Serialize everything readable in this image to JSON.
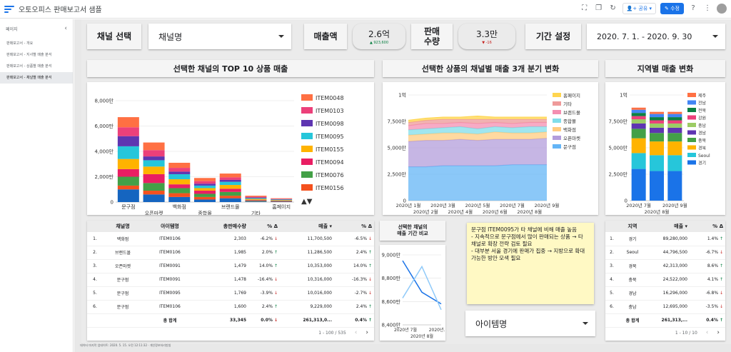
{
  "app": {
    "title": "오토오피스 판매보고서 샘플",
    "share_label": "공유",
    "edit_label": "수정",
    "footer": "데이터 마지막 업데이트: 2020. 5. 15. 오전 12:11:32 · 개인정보처리방침"
  },
  "sidebar": {
    "header": "페이지",
    "items": [
      {
        "label": "판매보고서 - 개요"
      },
      {
        "label": "판매보고서 - 지사별 매출 분석"
      },
      {
        "label": "판매보고서 - 상품별 매출 분석"
      },
      {
        "label": "판매보고서 - 채널별 매출 분석"
      }
    ]
  },
  "controls": {
    "channel_label": "채널 선택",
    "channel_value": "채널명",
    "sales_label": "매출액",
    "sales_value": "2.6억",
    "sales_delta": "▲ 923,600",
    "qty_label": "판매\n수량",
    "qty_value": "3.3만",
    "qty_delta": "▼ -16",
    "period_label": "기간 설정",
    "period_value": "2020. 7. 1. - 2020. 9. 30"
  },
  "sections": {
    "top10": "선택한 채널의 TOP 10 상품 매출",
    "quarter": "선택한 상품의 채널별 매출 3개 분기 변화",
    "region": "지역별 매출 변화",
    "period_compare": "선택한 채널의\n매출 기간 비교"
  },
  "chart_data": [
    {
      "type": "bar",
      "stacked": true,
      "yticks": [
        "0",
        "2,000만",
        "4,000만",
        "6,000만",
        "8,000만"
      ],
      "ylim": [
        0,
        80000000
      ],
      "categories": [
        "문구점",
        "오픈마켓",
        "백화점",
        "종합몰",
        "브랜드몰",
        "기타",
        "홈페이지"
      ],
      "legend_position": "right",
      "legend_arrows": "▲▼",
      "series": [
        {
          "name": "ITEM0048",
          "color": "#ff7043",
          "values": [
            8000000,
            6000000,
            4000000,
            2500000,
            3000000,
            800000,
            400000
          ]
        },
        {
          "name": "ITEM0103",
          "color": "#ec407a",
          "values": [
            7000000,
            5000000,
            3000000,
            2000000,
            2000000,
            600000,
            300000
          ]
        },
        {
          "name": "ITEM0098",
          "color": "#5e35b1",
          "values": [
            8000000,
            3000000,
            2000000,
            1500000,
            1500000,
            500000,
            300000
          ]
        },
        {
          "name": "ITEM0095",
          "color": "#26c6da",
          "values": [
            10000000,
            5000000,
            4000000,
            2000000,
            2500000,
            600000,
            400000
          ]
        },
        {
          "name": "ITEM0155",
          "color": "#ffb300",
          "values": [
            8000000,
            6000000,
            4000000,
            2000000,
            3000000,
            700000,
            400000
          ]
        },
        {
          "name": "ITEM0094",
          "color": "#e91e63",
          "values": [
            6000000,
            7000000,
            3000000,
            2500000,
            2500000,
            500000,
            300000
          ]
        },
        {
          "name": "ITEM0076",
          "color": "#43a047",
          "values": [
            7000000,
            6000000,
            4000000,
            2500000,
            3000000,
            500000,
            300000
          ]
        },
        {
          "name": "ITEM0156",
          "color": "#f4511e",
          "values": [
            3000000,
            3000000,
            3000000,
            2000000,
            2000000,
            300000,
            300000
          ]
        },
        {
          "name": "",
          "color": "#1565c0",
          "values": [
            10000000,
            6000000,
            4000000,
            2000000,
            3000000,
            500000,
            300000
          ]
        }
      ]
    },
    {
      "type": "area",
      "stacked": true,
      "yticks": [
        "0",
        "2,500만",
        "5,000만",
        "7,500만",
        "1억"
      ],
      "ylim": [
        0,
        100000000
      ],
      "x": [
        "2020년 1월",
        "2020년 2월",
        "2020년 3월",
        "2020년 4월",
        "2020년 5월",
        "2020년 6월",
        "2020년 7월",
        "2020년 8월",
        "2020년 9월"
      ],
      "legend_position": "right",
      "series": [
        {
          "name": "문구점",
          "color": "#64b5f6",
          "values": [
            32000000,
            32000000,
            33000000,
            33000000,
            33000000,
            33000000,
            34000000,
            34000000,
            34000000
          ]
        },
        {
          "name": "오픈마켓",
          "color": "#b39ddb",
          "values": [
            24000000,
            25000000,
            24000000,
            25000000,
            24000000,
            25000000,
            24000000,
            24000000,
            25000000
          ]
        },
        {
          "name": "백화점",
          "color": "#ffcc80",
          "values": [
            6000000,
            6000000,
            7000000,
            6000000,
            6000000,
            7000000,
            6000000,
            6000000,
            6000000
          ]
        },
        {
          "name": "종합몰",
          "color": "#80deea",
          "values": [
            5000000,
            5000000,
            5000000,
            6000000,
            5000000,
            5000000,
            5000000,
            6000000,
            5000000
          ]
        },
        {
          "name": "브랜드몰",
          "color": "#f48fb1",
          "values": [
            4000000,
            5000000,
            4000000,
            4000000,
            5000000,
            4000000,
            4000000,
            4000000,
            4000000
          ]
        },
        {
          "name": "기타",
          "color": "#ef9a9a",
          "values": [
            3000000,
            3000000,
            4000000,
            3000000,
            4000000,
            3000000,
            4000000,
            3000000,
            3000000
          ]
        },
        {
          "name": "홈페이지",
          "color": "#ffd54f",
          "values": [
            2000000,
            2000000,
            2000000,
            2000000,
            3000000,
            2000000,
            2000000,
            2000000,
            2000000
          ]
        }
      ]
    },
    {
      "type": "bar",
      "stacked": true,
      "yticks": [
        "0",
        "2,500만",
        "5,000만",
        "7,500만",
        "1억"
      ],
      "ylim": [
        0,
        100000000
      ],
      "categories": [
        "2020년 7월",
        "2020년 8월",
        "2020년 9월"
      ],
      "legend_position": "right",
      "series": [
        {
          "name": "경기",
          "color": "#1a73e8",
          "values": [
            30000000,
            28000000,
            28000000
          ]
        },
        {
          "name": "Seoul",
          "color": "#26c6da",
          "values": [
            15000000,
            15000000,
            15000000
          ]
        },
        {
          "name": "경북",
          "color": "#ffb300",
          "values": [
            14000000,
            13000000,
            13000000
          ]
        },
        {
          "name": "충북",
          "color": "#43a047",
          "values": [
            9000000,
            8000000,
            8000000
          ]
        },
        {
          "name": "경남",
          "color": "#5e35b1",
          "values": [
            5000000,
            5000000,
            5000000
          ]
        },
        {
          "name": "충남",
          "color": "#9ccc65",
          "values": [
            4000000,
            4000000,
            4000000
          ]
        },
        {
          "name": "강원",
          "color": "#ec407a",
          "values": [
            3000000,
            3000000,
            3000000
          ]
        },
        {
          "name": "전북",
          "color": "#0b8043",
          "values": [
            3000000,
            3000000,
            3000000
          ]
        },
        {
          "name": "전남",
          "color": "#4285f4",
          "values": [
            3000000,
            3000000,
            3000000
          ]
        },
        {
          "name": "제주",
          "color": "#ff7043",
          "values": [
            2000000,
            2000000,
            2000000
          ]
        }
      ]
    },
    {
      "type": "line",
      "yticks": [
        "8,400만",
        "8,600만",
        "8,800만",
        "9,000만"
      ],
      "ylim": [
        84000000,
        90000000
      ],
      "x": [
        "2020년 7월",
        "2020년 8월",
        "2020년..."
      ],
      "series": [
        {
          "name": "",
          "color": "#1a73e8",
          "values": [
            89500000,
            86800000,
            85800000
          ]
        },
        {
          "name": "",
          "color": "#90caf9",
          "values": [
            86300000,
            89000000,
            85300000
          ]
        }
      ]
    }
  ],
  "table_channel": {
    "headers": [
      "",
      "채널명",
      "아이템명",
      "총판매수량",
      "% Δ",
      "매출 ▾",
      "% Δ"
    ],
    "rows": [
      {
        "n": "1.",
        "ch": "백화점",
        "item": "ITEM0106",
        "qty": "2,303",
        "qd": "-6.2%",
        "qdir": "down",
        "sales": "11,700,500",
        "sd": "-6.5%",
        "sdir": "down"
      },
      {
        "n": "2.",
        "ch": "브랜드몰",
        "item": "ITEM0106",
        "qty": "1,985",
        "qd": "2.0%",
        "qdir": "up",
        "sales": "11,286,500",
        "sd": "2.4%",
        "sdir": "up"
      },
      {
        "n": "3.",
        "ch": "오픈마켓",
        "item": "ITEM0091",
        "qty": "1,479",
        "qd": "14.0%",
        "qdir": "up",
        "sales": "10,353,000",
        "sd": "14.0%",
        "sdir": "up"
      },
      {
        "n": "4.",
        "ch": "문구점",
        "item": "ITEM0091",
        "qty": "1,478",
        "qd": "-16.4%",
        "qdir": "down",
        "sales": "10,316,000",
        "sd": "-16.3%",
        "sdir": "down"
      },
      {
        "n": "5.",
        "ch": "문구점",
        "item": "ITEM0095",
        "qty": "1,769",
        "qd": "-3.9%",
        "qdir": "down",
        "sales": "10,016,000",
        "sd": "-2.7%",
        "sdir": "down"
      },
      {
        "n": "6.",
        "ch": "문구점",
        "item": "ITEM0106",
        "qty": "1,600",
        "qd": "2.4%",
        "qdir": "up",
        "sales": "9,229,000",
        "sd": "2.4%",
        "sdir": "up"
      }
    ],
    "total": {
      "label": "총 합계",
      "qty": "33,345",
      "qd": "0.0%",
      "qdir": "down",
      "sales": "261,313,0...",
      "sd": "0.4%",
      "sdir": "up"
    },
    "pager": "1 - 100 / 535"
  },
  "table_region": {
    "headers": [
      "",
      "지역",
      "매출 ▾",
      "% Δ"
    ],
    "rows": [
      {
        "n": "1.",
        "reg": "경기",
        "sales": "89,280,000",
        "d": "1.4%",
        "dir": "up"
      },
      {
        "n": "2.",
        "reg": "Seoul",
        "sales": "44,796,500",
        "d": "-6.7%",
        "dir": "down"
      },
      {
        "n": "3.",
        "reg": "경북",
        "sales": "42,313,000",
        "d": "8.6%",
        "dir": "up"
      },
      {
        "n": "4.",
        "reg": "충북",
        "sales": "24,522,000",
        "d": "4.1%",
        "dir": "up"
      },
      {
        "n": "5.",
        "reg": "경남",
        "sales": "16,296,000",
        "d": "-6.8%",
        "dir": "down"
      },
      {
        "n": "6.",
        "reg": "충남",
        "sales": "12,695,000",
        "d": "-3.5%",
        "dir": "down"
      }
    ],
    "total": {
      "label": "총 합계",
      "sales": "261,313,...",
      "d": "0.4%",
      "dir": "up"
    },
    "pager": "1 - 10 / 10"
  },
  "note": {
    "text": "문구점 ITEM0095가 타 채널에 비해 매출 높음\n- 지속적으로 문구점에서 많이 판매되는 상품 → 타 채널로 확장 전략 검토 필요\n- 대부분 서울 경기에 판매가 집중 → 지방으로 확대가능한 방안 모색 필요"
  },
  "item_dropdown": {
    "value": "아이템명"
  }
}
